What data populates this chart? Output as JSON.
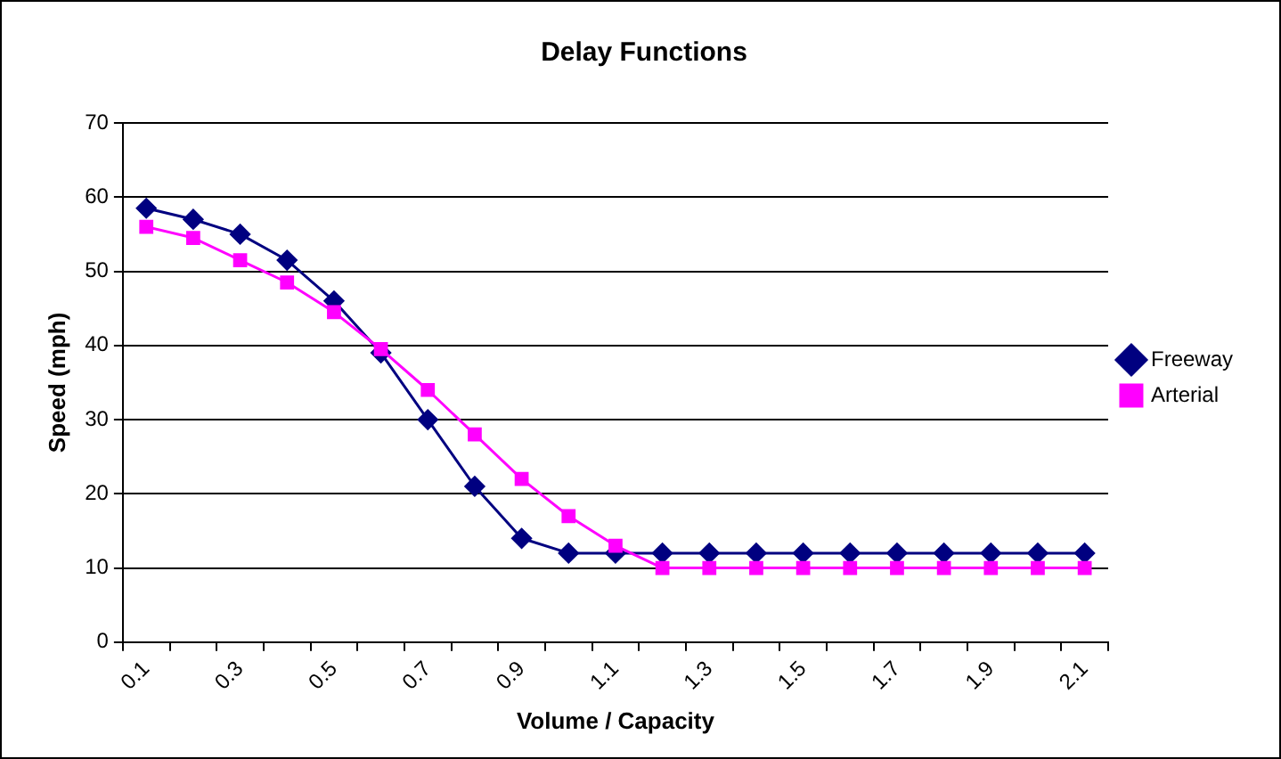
{
  "chart_data": {
    "type": "line",
    "title": "Delay Functions",
    "xlabel": "Volume / Capacity",
    "ylabel": "Speed (mph)",
    "categories": [
      "0.1",
      null,
      "0.3",
      null,
      "0.5",
      null,
      "0.7",
      null,
      "0.9",
      null,
      "1.1",
      null,
      "1.3",
      null,
      "1.5",
      null,
      "1.7",
      null,
      "1.9",
      null,
      "2.1"
    ],
    "series": [
      {
        "name": "Freeway",
        "color": "#000080",
        "marker": "diamond",
        "values": [
          58.5,
          57,
          55,
          51.5,
          46,
          39,
          30,
          21,
          14,
          12,
          12,
          12,
          12,
          12,
          12,
          12,
          12,
          12,
          12,
          12,
          12
        ]
      },
      {
        "name": "Arterial",
        "color": "#ff00ff",
        "marker": "square",
        "values": [
          56,
          54.5,
          51.5,
          48.5,
          44.5,
          39.5,
          34,
          28,
          22,
          17,
          13,
          10,
          10,
          10,
          10,
          10,
          10,
          10,
          10,
          10,
          10
        ]
      }
    ],
    "ylim": [
      0,
      70
    ],
    "yticks": [
      0,
      10,
      20,
      30,
      40,
      50,
      60,
      70
    ],
    "grid": "y",
    "legend": "right",
    "line_style": "solid"
  }
}
